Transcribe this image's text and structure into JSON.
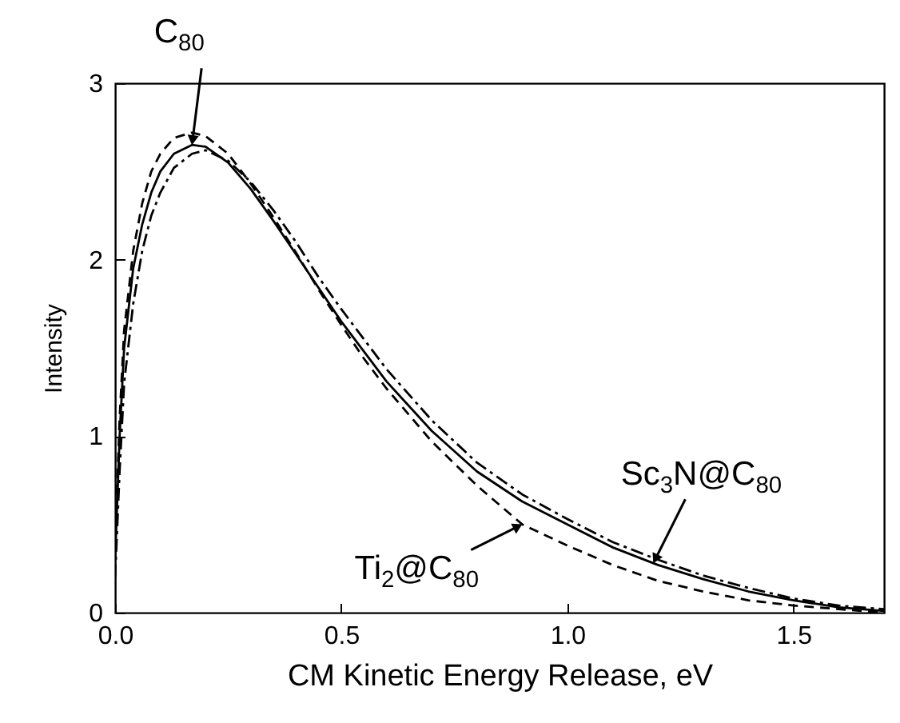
{
  "chart_data": {
    "type": "line",
    "xlabel": "CM Kinetic Energy Release, eV",
    "ylabel": "Intensity",
    "xlim": [
      0,
      1.7
    ],
    "xticks": [
      {
        "value": 0,
        "label": "0.0"
      },
      0.5,
      {
        "value": 1,
        "label": "1.0"
      },
      1.5
    ],
    "ylim": [
      0,
      3
    ],
    "yticks": [
      {
        "value": 0,
        "label": "0"
      },
      {
        "value": 1,
        "label": "1"
      },
      {
        "value": 2,
        "label": "2"
      },
      {
        "value": 3,
        "label": "3"
      }
    ],
    "grid": false,
    "x": [
      0,
      0.01,
      0.02,
      0.04,
      0.06,
      0.08,
      0.1,
      0.13,
      0.17,
      0.2,
      0.25,
      0.3,
      0.35,
      0.4,
      0.45,
      0.5,
      0.55,
      0.6,
      0.7,
      0.8,
      0.9,
      1.0,
      1.1,
      1.2,
      1.3,
      1.4,
      1.5,
      1.6,
      1.7
    ],
    "series": [
      {
        "color": "#000000",
        "line_style": "solid",
        "values": [
          0.3,
          1.0,
          1.5,
          1.95,
          2.2,
          2.38,
          2.5,
          2.6,
          2.65,
          2.64,
          2.55,
          2.4,
          2.22,
          2.03,
          1.84,
          1.65,
          1.48,
          1.31,
          1.03,
          0.8,
          0.63,
          0.5,
          0.37,
          0.27,
          0.19,
          0.12,
          0.07,
          0.03,
          0.01
        ]
      },
      {
        "color": "#000000",
        "line_style": "dashdot",
        "values": [
          0.2,
          0.8,
          1.3,
          1.75,
          2.05,
          2.25,
          2.38,
          2.52,
          2.6,
          2.62,
          2.56,
          2.44,
          2.28,
          2.1,
          1.9,
          1.72,
          1.55,
          1.38,
          1.09,
          0.85,
          0.67,
          0.53,
          0.4,
          0.3,
          0.21,
          0.14,
          0.08,
          0.04,
          0.02
        ]
      },
      {
        "color": "#000000",
        "line_style": "dashed",
        "values": [
          0.4,
          1.1,
          1.6,
          2.05,
          2.32,
          2.5,
          2.6,
          2.69,
          2.72,
          2.7,
          2.6,
          2.43,
          2.24,
          2.04,
          1.83,
          1.63,
          1.44,
          1.27,
          0.97,
          0.72,
          0.5,
          0.38,
          0.27,
          0.18,
          0.12,
          0.07,
          0.04,
          0.02,
          0
        ]
      }
    ],
    "annotations": [
      {
        "text": "C$_{80}$",
        "x": 0.17,
        "y": 2.65
      },
      {
        "text": "Ti$_{2}$@C$_{80}$",
        "x": 0.9,
        "y": 0.5
      },
      {
        "text": "Sc$_{3}$N@C$_{80}$",
        "x": 1.19,
        "y": 0.28
      }
    ]
  }
}
